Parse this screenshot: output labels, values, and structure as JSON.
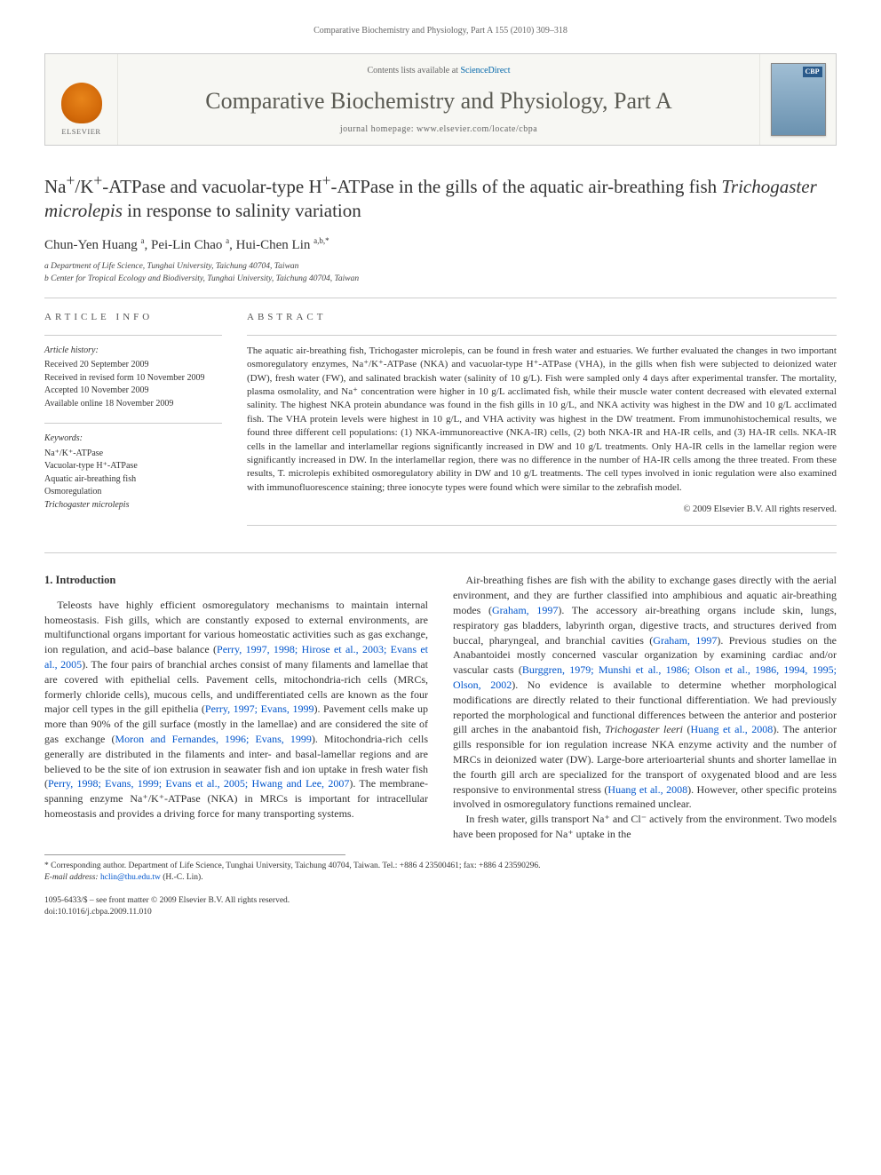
{
  "running_header": "Comparative Biochemistry and Physiology, Part A 155 (2010) 309–318",
  "banner": {
    "publisher": "ELSEVIER",
    "availability_pre": "Contents lists available at ",
    "availability_link": "ScienceDirect",
    "journal_name": "Comparative Biochemistry and Physiology, Part A",
    "homepage_pre": "journal homepage: ",
    "homepage_url": "www.elsevier.com/locate/cbpa",
    "cover_badge": "CBP"
  },
  "title_html": "Na<sup>+</sup>/K<sup>+</sup>-ATPase and vacuolar-type H<sup>+</sup>-ATPase in the gills of the aquatic air-breathing fish <span class=\"species\">Trichogaster microlepis</span> in response to salinity variation",
  "authors_html": "Chun-Yen Huang <sup>a</sup>, Pei-Lin Chao <sup>a</sup>, Hui-Chen Lin <sup>a,b,*</sup>",
  "affiliations": [
    "a Department of Life Science, Tunghai University, Taichung 40704, Taiwan",
    "b Center for Tropical Ecology and Biodiversity, Tunghai University, Taichung 40704, Taiwan"
  ],
  "article_info": {
    "heading": "article info",
    "history_label": "Article history:",
    "history": [
      "Received 20 September 2009",
      "Received in revised form 10 November 2009",
      "Accepted 10 November 2009",
      "Available online 18 November 2009"
    ],
    "keywords_label": "Keywords:",
    "keywords": [
      "Na⁺/K⁺-ATPase",
      "Vacuolar-type H⁺-ATPase",
      "Aquatic air-breathing fish",
      "Osmoregulation",
      "Trichogaster microlepis"
    ]
  },
  "abstract": {
    "heading": "abstract",
    "text": "The aquatic air-breathing fish, Trichogaster microlepis, can be found in fresh water and estuaries. We further evaluated the changes in two important osmoregulatory enzymes, Na⁺/K⁺-ATPase (NKA) and vacuolar-type H⁺-ATPase (VHA), in the gills when fish were subjected to deionized water (DW), fresh water (FW), and salinated brackish water (salinity of 10 g/L). Fish were sampled only 4 days after experimental transfer. The mortality, plasma osmolality, and Na⁺ concentration were higher in 10 g/L acclimated fish, while their muscle water content decreased with elevated external salinity. The highest NKA protein abundance was found in the fish gills in 10 g/L, and NKA activity was highest in the DW and 10 g/L acclimated fish. The VHA protein levels were highest in 10 g/L, and VHA activity was highest in the DW treatment. From immunohistochemical results, we found three different cell populations: (1) NKA-immunoreactive (NKA-IR) cells, (2) both NKA-IR and HA-IR cells, and (3) HA-IR cells. NKA-IR cells in the lamellar and interlamellar regions significantly increased in DW and 10 g/L treatments. Only HA-IR cells in the lamellar region were significantly increased in DW. In the interlamellar region, there was no difference in the number of HA-IR cells among the three treated. From these results, T. microlepis exhibited osmoregulatory ability in DW and 10 g/L treatments. The cell types involved in ionic regulation were also examined with immunofluorescence staining; three ionocyte types were found which were similar to the zebrafish model.",
    "copyright": "© 2009 Elsevier B.V. All rights reserved."
  },
  "section1": {
    "heading": "1. Introduction",
    "p1_html": "Teleosts have highly efficient osmoregulatory mechanisms to maintain internal homeostasis. Fish gills, which are constantly exposed to external environments, are multifunctional organs important for various homeostatic activities such as gas exchange, ion regulation, and acid–base balance (<span class=\"bluelink\">Perry, 1997, 1998; Hirose et al., 2003; Evans et al., 2005</span>). The four pairs of branchial arches consist of many filaments and lamellae that are covered with epithelial cells. Pavement cells, mitochondria-rich cells (MRCs, formerly chloride cells), mucous cells, and undifferentiated cells are known as the four major cell types in the gill epithelia (<span class=\"bluelink\">Perry, 1997; Evans, 1999</span>). Pavement cells make up more than 90% of the gill surface (mostly in the lamellae) and are considered the site of gas exchange (<span class=\"bluelink\">Moron and Fernandes, 1996; Evans, 1999</span>). Mitochondria-rich cells generally are distributed in the filaments and inter- and basal-lamellar regions and are believed to be the site of ion extrusion in seawater fish and ion uptake in fresh water fish (<span class=\"bluelink\">Perry, 1998; Evans, 1999; Evans et al., 2005; Hwang and Lee, 2007</span>). The membrane-spanning enzyme Na⁺/K⁺-ATPase (NKA) in MRCs is important for intracellular homeostasis and provides a driving force for many transporting systems.",
    "p2_html": "Air-breathing fishes are fish with the ability to exchange gases directly with the aerial environment, and they are further classified into amphibious and aquatic air-breathing modes (<span class=\"bluelink\">Graham, 1997</span>). The accessory air-breathing organs include skin, lungs, respiratory gas bladders, labyrinth organ, digestive tracts, and structures derived from buccal, pharyngeal, and branchial cavities (<span class=\"bluelink\">Graham, 1997</span>). Previous studies on the Anabantoidei mostly concerned vascular organization by examining cardiac and/or vascular casts (<span class=\"bluelink\">Burggren, 1979; Munshi et al., 1986; Olson et al., 1986, 1994, 1995; Olson, 2002</span>). No evidence is available to determine whether morphological modifications are directly related to their functional differentiation. We had previously reported the morphological and functional differences between the anterior and posterior gill arches in the anabantoid fish, <i>Trichogaster leeri</i> (<span class=\"bluelink\">Huang et al., 2008</span>). The anterior gills responsible for ion regulation increase NKA enzyme activity and the number of MRCs in deionized water (DW). Large-bore arterioarterial shunts and shorter lamellae in the fourth gill arch are specialized for the transport of oxygenated blood and are less responsive to environmental stress (<span class=\"bluelink\">Huang et al., 2008</span>). However, other specific proteins involved in osmoregulatory functions remained unclear.",
    "p3_html": "In fresh water, gills transport Na⁺ and Cl⁻ actively from the environment. Two models have been proposed for Na⁺ uptake in the"
  },
  "footnotes": {
    "corr": "* Corresponding author. Department of Life Science, Tunghai University, Taichung 40704, Taiwan. Tel.: +886 4 23500461; fax: +886 4 23590296.",
    "email_label": "E-mail address:",
    "email": "hclin@thu.edu.tw",
    "email_who": "(H.-C. Lin)."
  },
  "bottom": {
    "issn_line": "1095-6433/$ – see front matter © 2009 Elsevier B.V. All rights reserved.",
    "doi_line": "doi:10.1016/j.cbpa.2009.11.010"
  },
  "colors": {
    "link": "#0055cc",
    "rule": "#cccccc",
    "cover_top": "#a0bed4",
    "cover_bot": "#6b92b0",
    "banner_bg": "#f7f7f3"
  }
}
